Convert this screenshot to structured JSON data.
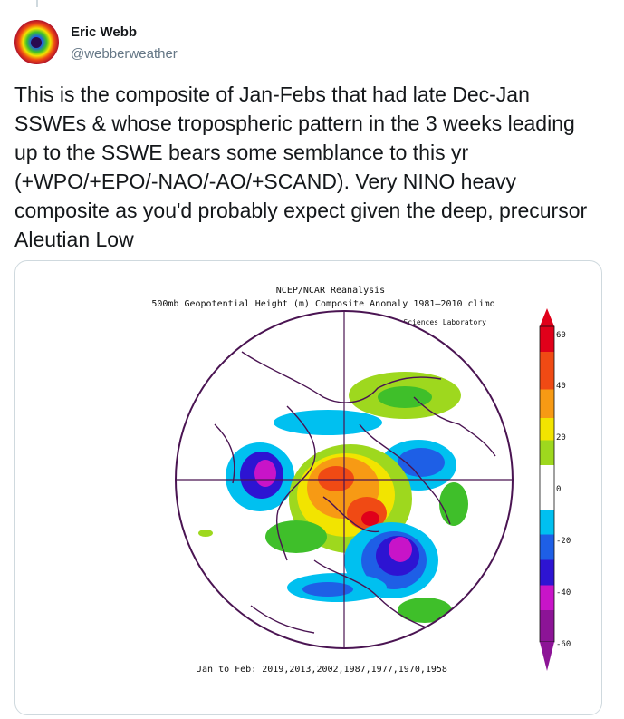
{
  "tweet": {
    "author_name": "Eric Webb",
    "author_handle": "@webberweather",
    "text": "This is the composite of Jan-Febs that had late Dec-Jan SSWEs & whose tropospheric pattern in the 3 weeks leading up to the SSWE bears some semblance to this yr (+WPO/+EPO/-NAO/-AO/+SCAND). Very NINO heavy composite as you'd probably expect given the deep, precursor Aleutian Low"
  },
  "map_image": {
    "title_line1": "NCEP/NCAR Reanalysis",
    "title_line2": "500mb Geopotential Height (m) Composite Anomaly 1981–2010 climo",
    "credit": "NOAA Physical Sciences Laboratory",
    "footer": "Jan to Feb: 2019,2013,2002,1987,1977,1970,1958",
    "scale_labels": [
      "60",
      "40",
      "20",
      "0",
      "-20",
      "-40",
      "-60"
    ],
    "colors": {
      "deep_red": "#e0001a",
      "red": "#f04a14",
      "orange": "#f79a14",
      "yellow": "#f2e400",
      "light_green": "#9ed81e",
      "green": "#3fbf2a",
      "white": "#ffffff",
      "cyan": "#00c0f0",
      "blue": "#1e5fe6",
      "dark_blue": "#2d14d2",
      "magenta": "#c814c8",
      "purple": "#8c1496",
      "map_lines": "#4a1452"
    }
  }
}
